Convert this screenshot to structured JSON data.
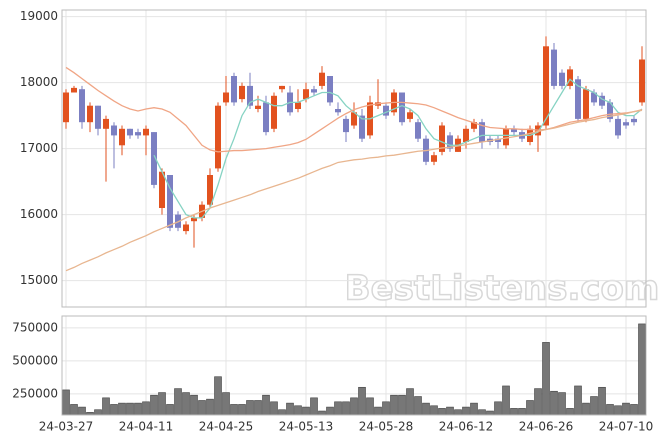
{
  "chart_data": [
    {
      "type": "candlestick",
      "categories": [
        "24-03-27",
        null,
        null,
        null,
        null,
        null,
        null,
        null,
        null,
        null,
        "24-04-11",
        null,
        null,
        null,
        null,
        null,
        null,
        null,
        null,
        null,
        "24-04-25",
        null,
        null,
        null,
        null,
        null,
        null,
        null,
        null,
        null,
        "24-05-13",
        null,
        null,
        null,
        null,
        null,
        null,
        null,
        null,
        null,
        "24-05-28",
        null,
        null,
        null,
        null,
        null,
        null,
        null,
        null,
        null,
        "24-06-12",
        null,
        null,
        null,
        null,
        null,
        null,
        null,
        null,
        null,
        "24-06-26",
        null,
        null,
        null,
        null,
        null,
        null,
        null,
        null,
        null,
        "24-07-10",
        null,
        null
      ],
      "open": [
        17400,
        17850,
        17900,
        17400,
        17650,
        17300,
        17350,
        17050,
        17300,
        17250,
        17200,
        17250,
        16100,
        16600,
        16000,
        15750,
        15900,
        15950,
        16150,
        16700,
        17700,
        18100,
        17750,
        17950,
        17600,
        17700,
        17300,
        17900,
        17850,
        17600,
        17750,
        17900,
        17950,
        18100,
        17600,
        17450,
        17350,
        17500,
        17200,
        17650,
        17650,
        17550,
        17850,
        17450,
        17400,
        17150,
        16800,
        16950,
        17200,
        16950,
        17100,
        17300,
        17400,
        17150,
        17150,
        17050,
        17300,
        17250,
        17100,
        17200,
        17350,
        18500,
        18150,
        17950,
        18050,
        17450,
        17850,
        17800,
        17700,
        17450,
        17400,
        17450,
        17700
      ],
      "high": [
        17900,
        17950,
        17950,
        17700,
        17650,
        17500,
        17400,
        17350,
        17300,
        17300,
        17350,
        17250,
        16700,
        16600,
        16050,
        15900,
        16000,
        16200,
        16700,
        17700,
        18100,
        18150,
        18000,
        18150,
        17800,
        17800,
        17850,
        17950,
        17950,
        17900,
        18000,
        17950,
        18250,
        18100,
        17700,
        17500,
        17700,
        17600,
        17800,
        18050,
        17700,
        17900,
        17850,
        17600,
        17450,
        17200,
        16950,
        17400,
        17250,
        17200,
        17350,
        17450,
        17450,
        17200,
        17200,
        17350,
        17350,
        17300,
        17350,
        17400,
        18700,
        18600,
        18200,
        18250,
        18100,
        17950,
        17900,
        17850,
        17750,
        17500,
        17450,
        17500,
        18550
      ],
      "low": [
        17300,
        17850,
        17300,
        17250,
        17200,
        16500,
        16700,
        16900,
        17150,
        17150,
        16900,
        16400,
        16000,
        15750,
        15750,
        15700,
        15500,
        15900,
        16100,
        16650,
        17650,
        17650,
        17700,
        17600,
        17550,
        17200,
        17250,
        17850,
        17500,
        17550,
        17700,
        17800,
        17900,
        17650,
        17500,
        17100,
        17300,
        17100,
        17150,
        17600,
        17450,
        17500,
        17350,
        17400,
        17100,
        16750,
        16750,
        16900,
        16950,
        16950,
        17000,
        17250,
        17000,
        17050,
        17000,
        17000,
        17200,
        17100,
        17050,
        16950,
        17300,
        17900,
        17900,
        17900,
        17400,
        17400,
        17650,
        17600,
        17400,
        17150,
        17300,
        17350,
        17650
      ],
      "close": [
        17850,
        17920,
        17400,
        17650,
        17300,
        17450,
        17200,
        17300,
        17200,
        17200,
        17300,
        16450,
        16650,
        15800,
        15800,
        15850,
        15950,
        16150,
        16600,
        17650,
        17850,
        17700,
        17950,
        17650,
        17650,
        17250,
        17800,
        17950,
        17550,
        17700,
        17900,
        17850,
        18150,
        17700,
        17550,
        17250,
        17550,
        17150,
        17700,
        17700,
        17500,
        17850,
        17400,
        17550,
        17150,
        16800,
        16900,
        17350,
        17000,
        17150,
        17300,
        17400,
        17100,
        17100,
        17100,
        17300,
        17250,
        17150,
        17300,
        17350,
        18550,
        17950,
        17950,
        18200,
        17450,
        17900,
        17700,
        17650,
        17450,
        17200,
        17350,
        17400,
        18350
      ],
      "up_color": "#e2521f",
      "down_color": "#7b7fc2",
      "series": [
        {
          "color": "#86d3c3",
          "values": [
            null,
            null,
            null,
            null,
            null,
            null,
            null,
            null,
            null,
            null,
            null,
            16900,
            16650,
            16400,
            16200,
            16000,
            15950,
            15950,
            16100,
            16450,
            16850,
            17150,
            17500,
            17700,
            17750,
            17700,
            17650,
            17650,
            17700,
            17700,
            17750,
            17800,
            17850,
            17850,
            17800,
            17650,
            17550,
            17450,
            17450,
            17500,
            17550,
            17600,
            17650,
            17600,
            17500,
            17300,
            17150,
            17100,
            17050,
            17050,
            17100,
            17150,
            17200,
            17200,
            17200,
            17200,
            17200,
            17200,
            17200,
            17250,
            17450,
            17650,
            17850,
            18050,
            17950,
            17900,
            17850,
            17750,
            17700,
            17550,
            17500,
            17500,
            17600
          ]
        },
        {
          "color": "#f0a585",
          "values": [
            18230,
            18150,
            18060,
            17970,
            17880,
            17800,
            17720,
            17650,
            17600,
            17570,
            17600,
            17620,
            17600,
            17550,
            17450,
            17350,
            17200,
            17050,
            16980,
            16950,
            16960,
            16970,
            16970,
            16980,
            16990,
            17000,
            17020,
            17040,
            17060,
            17090,
            17140,
            17220,
            17300,
            17380,
            17460,
            17530,
            17590,
            17630,
            17660,
            17680,
            17690,
            17700,
            17700,
            17690,
            17680,
            17660,
            17620,
            17570,
            17520,
            17470,
            17430,
            17390,
            17350,
            17320,
            17310,
            17300,
            17300,
            17290,
            17290,
            17280,
            17290,
            17320,
            17360,
            17400,
            17420,
            17440,
            17470,
            17500,
            17520,
            17530,
            17540,
            17560,
            17590
          ]
        },
        {
          "color": "#e8b690",
          "values": [
            15150,
            15200,
            15260,
            15310,
            15360,
            15420,
            15470,
            15520,
            15580,
            15630,
            15680,
            15740,
            15790,
            15840,
            15890,
            15950,
            16000,
            16050,
            16100,
            16140,
            16180,
            16220,
            16260,
            16300,
            16350,
            16390,
            16430,
            16470,
            16510,
            16550,
            16600,
            16650,
            16700,
            16740,
            16790,
            16810,
            16830,
            16840,
            16860,
            16870,
            16890,
            16900,
            16920,
            16940,
            16960,
            16970,
            16990,
            17010,
            17020,
            17040,
            17060,
            17080,
            17100,
            17120,
            17140,
            17160,
            17180,
            17200,
            17230,
            17260,
            17290,
            17310,
            17340,
            17370,
            17400,
            17420,
            17440,
            17470,
            17490,
            17510,
            17530,
            17560,
            17580
          ]
        }
      ],
      "ylim": [
        14600,
        19100
      ],
      "yticks": [
        15000,
        16000,
        17000,
        18000,
        19000
      ],
      "grid": true,
      "watermark": "BestListens.com"
    },
    {
      "type": "bar",
      "color": "#777777",
      "values": [
        280000,
        170000,
        150000,
        110000,
        130000,
        220000,
        170000,
        180000,
        180000,
        180000,
        190000,
        240000,
        260000,
        170000,
        290000,
        260000,
        240000,
        200000,
        210000,
        380000,
        260000,
        170000,
        170000,
        200000,
        200000,
        240000,
        190000,
        130000,
        180000,
        160000,
        150000,
        220000,
        120000,
        150000,
        190000,
        190000,
        220000,
        300000,
        220000,
        150000,
        190000,
        240000,
        240000,
        290000,
        230000,
        180000,
        160000,
        140000,
        150000,
        130000,
        150000,
        180000,
        130000,
        120000,
        190000,
        310000,
        140000,
        140000,
        200000,
        290000,
        640000,
        270000,
        260000,
        140000,
        310000,
        180000,
        230000,
        300000,
        170000,
        160000,
        180000,
        170000,
        780000
      ],
      "ylim": [
        90000,
        840000
      ],
      "yticks": [
        250000,
        500000,
        750000
      ],
      "grid": true
    }
  ]
}
